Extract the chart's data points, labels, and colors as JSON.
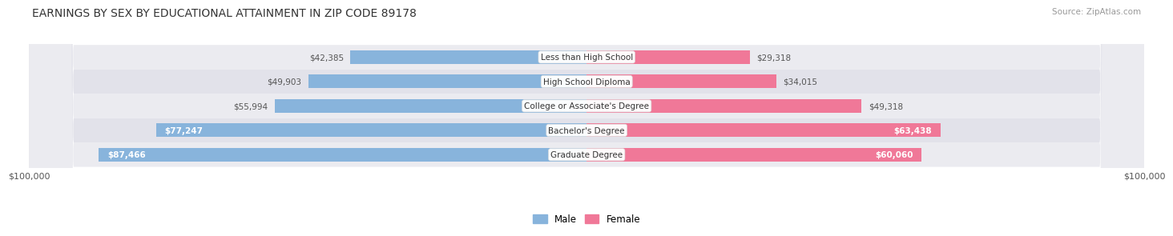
{
  "title": "EARNINGS BY SEX BY EDUCATIONAL ATTAINMENT IN ZIP CODE 89178",
  "source": "Source: ZipAtlas.com",
  "categories": [
    "Less than High School",
    "High School Diploma",
    "College or Associate's Degree",
    "Bachelor's Degree",
    "Graduate Degree"
  ],
  "male_values": [
    42385,
    49903,
    55994,
    77247,
    87466
  ],
  "female_values": [
    29318,
    34015,
    49318,
    63438,
    60060
  ],
  "max_value": 100000,
  "male_color": "#88B4DC",
  "female_color": "#F07898",
  "row_bg_colors": [
    "#EBEBF0",
    "#E2E2EA"
  ],
  "title_fontsize": 10,
  "source_fontsize": 7.5,
  "bar_height": 0.55,
  "fig_bg_color": "#FFFFFF",
  "male_label_inside_threshold": 75000,
  "female_label_inside_threshold": 58000
}
